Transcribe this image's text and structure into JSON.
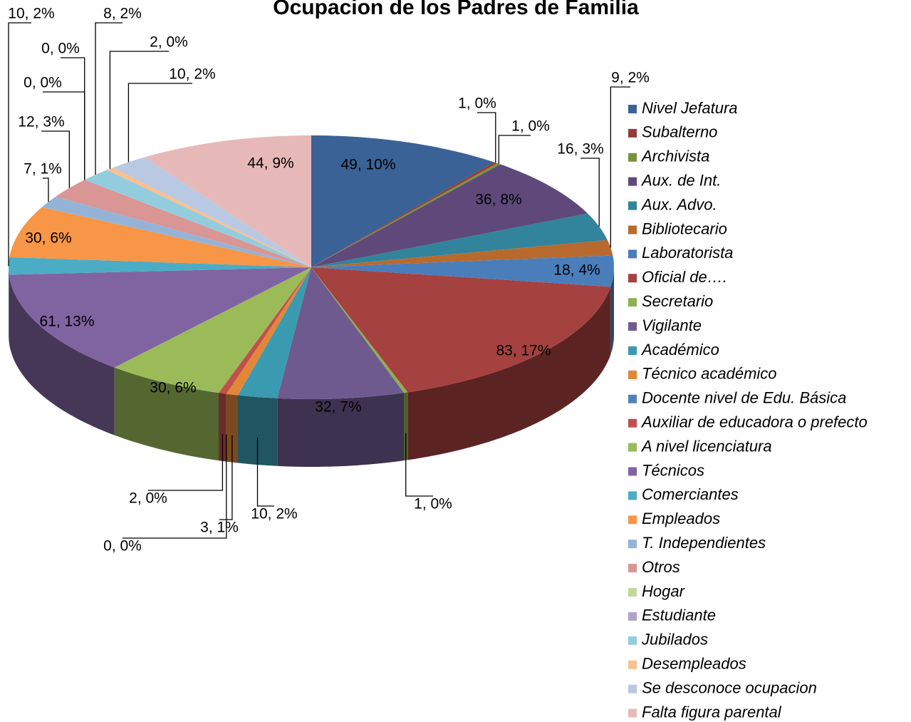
{
  "chart_data": {
    "type": "pie",
    "title": "Ocupacion de los Padres de Familia",
    "categories": [
      "Nivel Jefatura",
      "Subalterno",
      "Archivista",
      "Aux. de Int.",
      "Aux. Advo.",
      "Bibliotecario",
      "Laboratorista",
      "Oficial de….",
      "Secretario",
      "Vigilante",
      "Académico",
      "Técnico académico",
      "Docente nivel de Edu. Básica",
      "Auxiliar de educadora o prefecto",
      "A nivel licenciatura",
      "Técnicos",
      "Comerciantes",
      "Empleados",
      "T. Independientes",
      "Otros",
      "Hogar",
      "Estudiante",
      "Jubilados",
      "Desempleados",
      "Se desconoce ocupacion",
      "Falta figura parental"
    ],
    "values": [
      49,
      1,
      1,
      36,
      16,
      9,
      18,
      83,
      1,
      32,
      10,
      3,
      0,
      2,
      30,
      61,
      10,
      30,
      7,
      12,
      0,
      0,
      8,
      2,
      10,
      44
    ],
    "value_labels": [
      "49, 10%",
      "1, 0%",
      "1, 0%",
      "36, 8%",
      "16, 3%",
      "9, 2%",
      "18, 4%",
      "83, 17%",
      "1, 0%",
      "32, 7%",
      "10, 2%",
      "3, 1%",
      "0, 0%",
      "2, 0%",
      "30, 6%",
      "61, 13%",
      "10, 2%",
      "30, 6%",
      "7, 1%",
      "12, 3%",
      "0, 0%",
      "0, 0%",
      "8, 2%",
      "2, 0%",
      "10, 2%",
      "44, 9%"
    ],
    "colors": [
      "#3A6296",
      "#943B39",
      "#76923C",
      "#5F497A",
      "#31849B",
      "#B86A2E",
      "#4A7EBB",
      "#A5413F",
      "#8DB052",
      "#6F5A8F",
      "#3A9AB0",
      "#E28737",
      "#4F81BD",
      "#C0504D",
      "#9BBB59",
      "#8064A2",
      "#4BACC6",
      "#F79646",
      "#95B3D7",
      "#D99694",
      "#C3D69B",
      "#B3A2C7",
      "#93CDDD",
      "#FAC090",
      "#B9C9E3",
      "#E6B9B8"
    ]
  }
}
